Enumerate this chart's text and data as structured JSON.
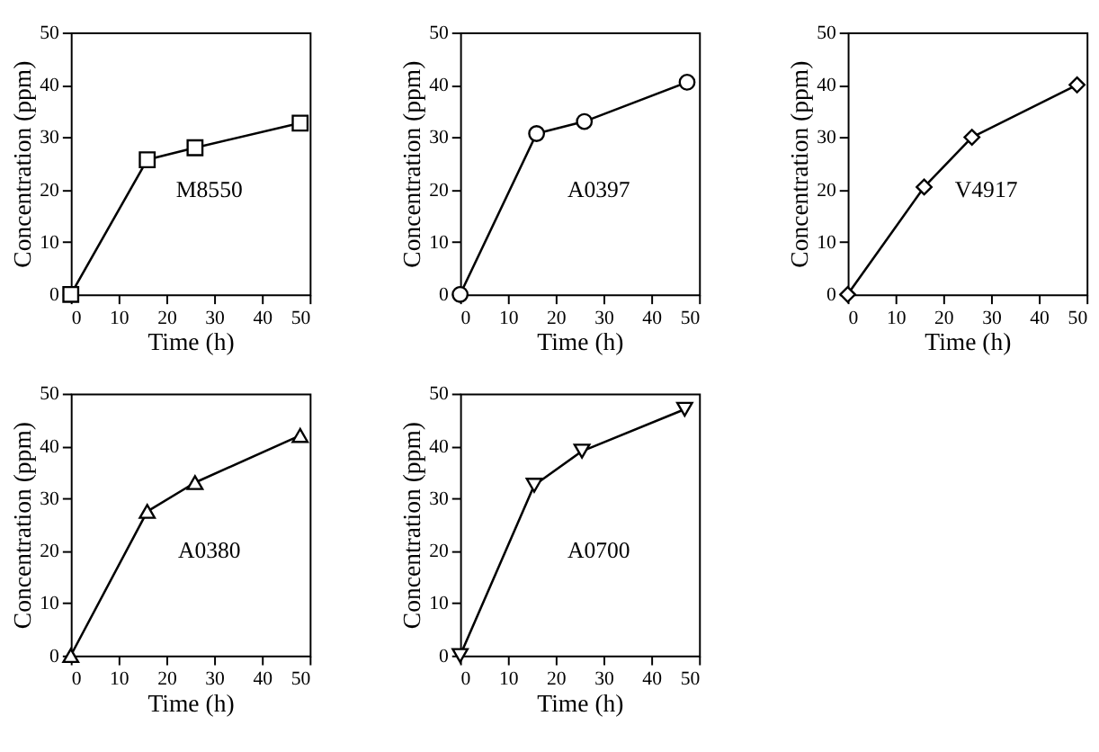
{
  "chart_data": [
    {
      "type": "line",
      "x": [
        0,
        16,
        26,
        48
      ],
      "values": [
        0,
        25.7,
        28,
        32.7
      ],
      "color": "#000000",
      "marker": "square",
      "line_style": "solid",
      "xlabel": "Time (h)",
      "ylabel": "Concentration (ppm)",
      "xlim": [
        0,
        50
      ],
      "ylim": [
        0,
        50
      ],
      "xticks": [
        0,
        10,
        20,
        30,
        40,
        50
      ],
      "yticks": [
        0,
        10,
        20,
        30,
        40,
        50
      ],
      "grid": false,
      "annotations": [
        "M8550"
      ]
    },
    {
      "type": "line",
      "x": [
        0,
        16,
        26,
        47.5
      ],
      "values": [
        0,
        30.7,
        33,
        40.5
      ],
      "color": "#000000",
      "marker": "circle",
      "line_style": "solid",
      "xlabel": "Time (h)",
      "ylabel": "Concentration (ppm)",
      "xlim": [
        0,
        50
      ],
      "ylim": [
        0,
        50
      ],
      "xticks": [
        0,
        10,
        20,
        30,
        40,
        50
      ],
      "yticks": [
        0,
        10,
        20,
        30,
        40,
        50
      ],
      "grid": false,
      "annotations": [
        "A0397"
      ]
    },
    {
      "type": "line",
      "x": [
        0,
        16,
        26,
        48
      ],
      "values": [
        0,
        20.5,
        30,
        40
      ],
      "color": "#000000",
      "marker": "diamond",
      "line_style": "solid",
      "xlabel": "Time (h)",
      "ylabel": "Concentration (ppm)",
      "xlim": [
        0,
        50
      ],
      "ylim": [
        0,
        50
      ],
      "xticks": [
        0,
        10,
        20,
        30,
        40,
        50
      ],
      "yticks": [
        0,
        10,
        20,
        30,
        40,
        50
      ],
      "grid": false,
      "annotations": [
        "V4917"
      ]
    },
    {
      "type": "line",
      "x": [
        0,
        16,
        26,
        48
      ],
      "values": [
        0,
        27.5,
        33,
        42
      ],
      "color": "#000000",
      "marker": "triangle",
      "line_style": "solid",
      "xlabel": "Time (h)",
      "ylabel": "Concentration (ppm)",
      "xlim": [
        0,
        50
      ],
      "ylim": [
        0,
        50
      ],
      "xticks": [
        0,
        10,
        20,
        30,
        40,
        50
      ],
      "yticks": [
        0,
        10,
        20,
        30,
        40,
        50
      ],
      "grid": false,
      "annotations": [
        "A0380"
      ]
    },
    {
      "type": "line",
      "x": [
        0,
        15.5,
        25.5,
        47
      ],
      "values": [
        0,
        32.5,
        39,
        47
      ],
      "color": "#000000",
      "marker": "triangle-down",
      "line_style": "solid",
      "xlabel": "Time (h)",
      "ylabel": "Concentration (ppm)",
      "xlim": [
        0,
        50
      ],
      "ylim": [
        0,
        50
      ],
      "xticks": [
        0,
        10,
        20,
        30,
        40,
        50
      ],
      "yticks": [
        0,
        10,
        20,
        30,
        40,
        50
      ],
      "grid": false,
      "annotations": [
        "A0700"
      ]
    }
  ]
}
